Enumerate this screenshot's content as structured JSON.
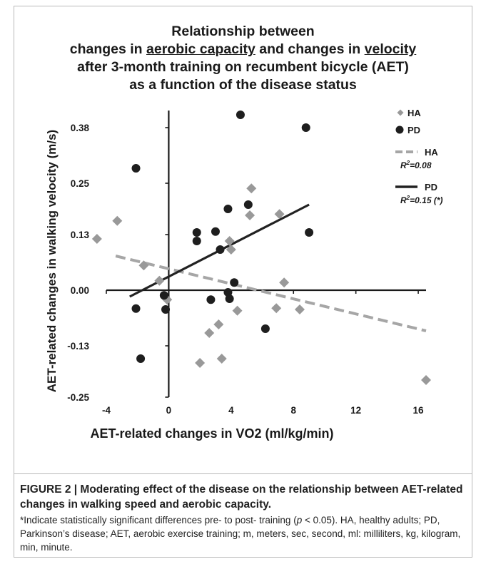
{
  "title": {
    "line1": "Relationship between",
    "line2_pre": "changes in ",
    "line2_u1": "aerobic capacity",
    "line2_mid": " and changes in ",
    "line2_u2": "velocity",
    "line3": "after 3-month training on recumbent bicycle (AET)",
    "line4": "as a function of the disease status"
  },
  "chart_data": {
    "type": "scatter",
    "xlabel": "AET-related changes in VO2 (ml/kg/min)",
    "ylabel": "AET-related changes in walking  velocity (m/s)",
    "xlim": [
      -4,
      16.5
    ],
    "ylim": [
      -0.25,
      0.42
    ],
    "x_ticks": [
      -4,
      0,
      4,
      8,
      12,
      16
    ],
    "x_tick_labels": [
      "-4",
      "0",
      "4",
      "8",
      "12",
      "16"
    ],
    "y_ticks": [
      -0.25,
      -0.13,
      0.0,
      0.13,
      0.25,
      0.38
    ],
    "y_tick_labels": [
      "-0.25",
      "-0.13",
      "0.00",
      "0.13",
      "0.25",
      "0.38"
    ],
    "grid": false,
    "legend_position": "top-right",
    "series": [
      {
        "name": "HA",
        "marker": "diamond",
        "color": "#999999",
        "points": [
          [
            -4.6,
            0.12
          ],
          [
            -3.3,
            0.162
          ],
          [
            -1.6,
            0.058
          ],
          [
            -0.6,
            0.022
          ],
          [
            -0.1,
            -0.022
          ],
          [
            2.0,
            -0.17
          ],
          [
            2.6,
            -0.1
          ],
          [
            3.2,
            -0.08
          ],
          [
            3.4,
            -0.16
          ],
          [
            3.9,
            0.115
          ],
          [
            4.0,
            0.095
          ],
          [
            4.4,
            -0.048
          ],
          [
            5.2,
            0.175
          ],
          [
            5.3,
            0.238
          ],
          [
            6.9,
            -0.042
          ],
          [
            7.1,
            0.178
          ],
          [
            7.4,
            0.018
          ],
          [
            8.4,
            -0.045
          ],
          [
            16.5,
            -0.21
          ]
        ]
      },
      {
        "name": "PD",
        "marker": "circle",
        "color": "#1e1e1e",
        "points": [
          [
            -2.1,
            0.285
          ],
          [
            -2.1,
            -0.043
          ],
          [
            -1.8,
            -0.16
          ],
          [
            -0.3,
            -0.012
          ],
          [
            -0.2,
            -0.045
          ],
          [
            1.8,
            0.135
          ],
          [
            1.8,
            0.115
          ],
          [
            2.7,
            -0.022
          ],
          [
            3.0,
            0.137
          ],
          [
            3.3,
            0.095
          ],
          [
            3.8,
            0.19
          ],
          [
            3.8,
            -0.005
          ],
          [
            3.9,
            -0.02
          ],
          [
            4.2,
            0.018
          ],
          [
            4.6,
            0.41
          ],
          [
            5.1,
            0.2
          ],
          [
            6.2,
            -0.09
          ],
          [
            8.8,
            0.38
          ],
          [
            9.0,
            0.135
          ]
        ]
      }
    ],
    "trendlines": [
      {
        "name": "HA",
        "r2_label": "=0.08",
        "x": [
          -3.4,
          16.5
        ],
        "y": [
          0.08,
          -0.095
        ],
        "color": "#a6a6a6",
        "style": "dashed"
      },
      {
        "name": "PD",
        "r2_label": "=0.15 (*)",
        "x": [
          -2.5,
          9.0
        ],
        "y": [
          -0.015,
          0.2
        ],
        "color": "#222222",
        "style": "solid"
      }
    ],
    "legend": [
      {
        "label": "HA",
        "kind": "marker",
        "series": "HA"
      },
      {
        "label": "PD",
        "kind": "marker",
        "series": "PD"
      },
      {
        "label": "HA",
        "kind": "line",
        "series": "HA",
        "r2": "=0.08"
      },
      {
        "label": "PD",
        "kind": "line",
        "series": "PD",
        "r2": "=0.15 (*)"
      }
    ],
    "r2_symbol": "R",
    "r2_superscript": "2"
  },
  "caption": {
    "heading": "FIGURE 2 | Moderating effect of the disease on the relationship between AET-related changes in walking speed and aerobic capacity.",
    "body_pre": "*Indicate statistically significant differences pre- to post- training (",
    "body_p": "p",
    "body_post": " < 0.05). HA, healthy adults; PD, Parkinson’s disease; AET, aerobic exercise training; m, meters, sec, second, ml: milliliters, kg, kilogram, min, minute."
  }
}
